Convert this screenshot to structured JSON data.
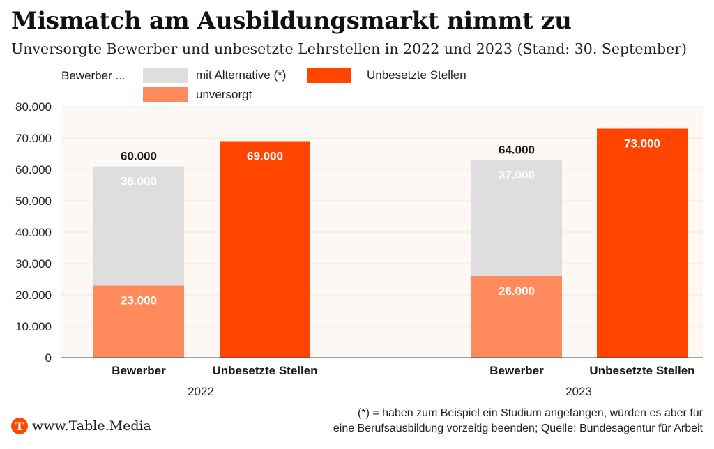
{
  "header": {
    "title": "Mismatch am Ausbildungsmarkt nimmt zu",
    "subtitle": "Unversorgte Bewerber und unbesetzte Lehrstellen in 2022 und 2023 (Stand: 30. September)"
  },
  "legend": {
    "prefix": "Bewerber ...",
    "items": [
      {
        "label": "mit Alternative (*)",
        "color": "#dedede"
      },
      {
        "label": "unversorgt",
        "color": "#ff8a5c"
      },
      {
        "label": "Unbesetzte Stellen",
        "color": "#ff4500"
      }
    ]
  },
  "chart_data": {
    "type": "bar",
    "stacked": true,
    "ylim": [
      0,
      80000
    ],
    "yticks": [
      "0",
      "10.000",
      "20.000",
      "30.000",
      "40.000",
      "50.000",
      "60.000",
      "70.000",
      "80.000"
    ],
    "groups": [
      {
        "year": "2022",
        "bars": [
          {
            "label": "Bewerber",
            "total_label": "60.000",
            "segments": [
              {
                "series": "unversorgt",
                "value": 23000,
                "label": "23.000",
                "color": "#ff8a5c"
              },
              {
                "series": "mit Alternative (*)",
                "value": 38000,
                "label": "38.000",
                "color": "#dedede"
              }
            ]
          },
          {
            "label": "Unbesetzte Stellen",
            "segments": [
              {
                "series": "Unbesetzte Stellen",
                "value": 69000,
                "label": "69.000",
                "color": "#ff4500"
              }
            ]
          }
        ]
      },
      {
        "year": "2023",
        "bars": [
          {
            "label": "Bewerber",
            "total_label": "64.000",
            "segments": [
              {
                "series": "unversorgt",
                "value": 26000,
                "label": "26.000",
                "color": "#ff8a5c"
              },
              {
                "series": "mit Alternative (*)",
                "value": 37000,
                "label": "37.000",
                "color": "#dedede"
              }
            ]
          },
          {
            "label": "Unbesetzte Stellen",
            "segments": [
              {
                "series": "Unbesetzte Stellen",
                "value": 73000,
                "label": "73.000",
                "color": "#ff4500"
              }
            ]
          }
        ]
      }
    ],
    "plot_background": "#fdf8f3"
  },
  "footer": {
    "logo_letter": "T",
    "brand": "www.Table.Media",
    "note_line1": "(*) = haben zum Beispiel ein Studium angefangen, würden es aber für",
    "note_line2": "eine Berufsausbildung vorzeitig beenden; Quelle: Bundesagentur für Arbeit"
  }
}
